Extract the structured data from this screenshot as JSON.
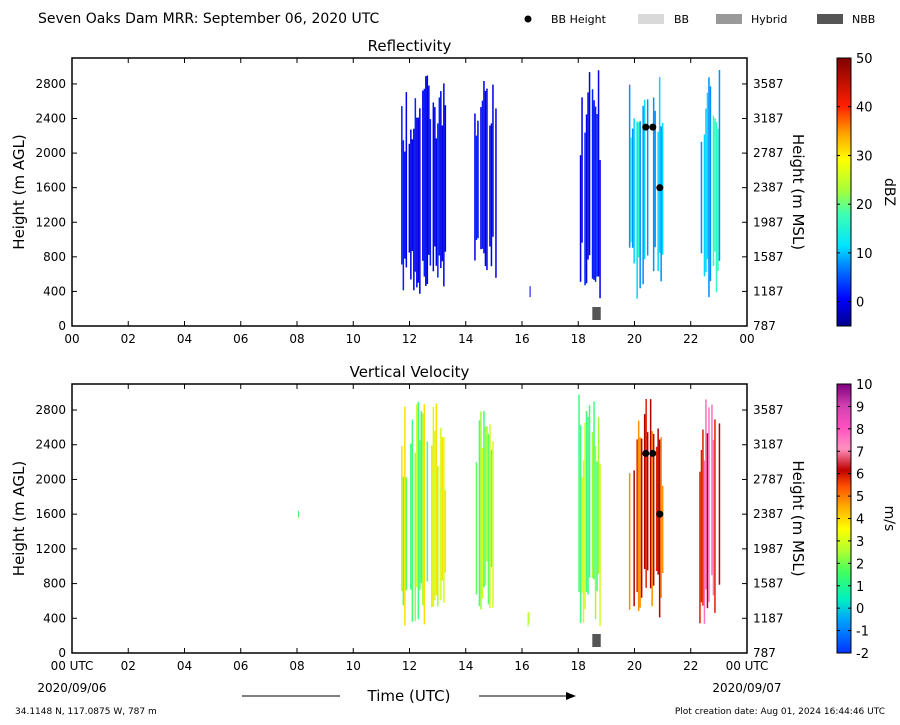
{
  "header": {
    "title": "Seven Oaks Dam MRR:  September 06, 2020 UTC",
    "legend": {
      "bb_height": "BB Height",
      "bb": "BB",
      "hybrid": "Hybrid",
      "nbb": "NBB"
    }
  },
  "footer": {
    "location": "34.1148 N, 117.0875 W, 787 m",
    "creation_date": "Plot creation date: Aug 01, 2024 16:44:46 UTC",
    "xlabel": "Time (UTC)",
    "start_label": "00 UTC",
    "end_label": "00 UTC",
    "start_date": "2020/09/06",
    "end_date": "2020/09/07"
  },
  "colors": {
    "bb": "#d9d9d9",
    "hybrid": "#999999",
    "nbb": "#555555",
    "bb_marker": "#000000"
  },
  "chart_data": [
    {
      "type": "heatmap",
      "title": "Reflectivity",
      "ylabel": "Height (m AGL)",
      "ylabel_right": "Height (m MSL)",
      "colorbar_label": "dBZ",
      "colorbar_ticks": [
        "50",
        "40",
        "30",
        "20",
        "10",
        "0"
      ],
      "colorbar_range": [
        -5,
        50
      ],
      "xlim": [
        0,
        24
      ],
      "x_ticks": [
        "00",
        "02",
        "04",
        "06",
        "08",
        "10",
        "12",
        "14",
        "16",
        "18",
        "20",
        "22",
        "00"
      ],
      "ylim": [
        0,
        3100
      ],
      "y_ticks": [
        "0",
        "400",
        "800",
        "1200",
        "1600",
        "2000",
        "2400",
        "2800"
      ],
      "y_ticks_right": [
        "787",
        "1187",
        "1587",
        "1987",
        "2387",
        "2787",
        "3187",
        "3587"
      ],
      "bb_height_points": [
        {
          "x": 20.4,
          "y": 2300
        },
        {
          "x": 20.65,
          "y": 2300
        },
        {
          "x": 20.9,
          "y": 1600
        }
      ],
      "nbb_segments": [
        {
          "x0": 18.5,
          "x1": 18.8
        }
      ],
      "precip_regions": [
        {
          "x0": 11.7,
          "x1": 13.3,
          "y0": 300,
          "y1": 2900,
          "level": 0
        },
        {
          "x0": 14.3,
          "x1": 15.1,
          "y0": 500,
          "y1": 2900,
          "level": 0
        },
        {
          "x0": 16.2,
          "x1": 16.3,
          "y0": 300,
          "y1": 500,
          "level": 0
        },
        {
          "x0": 18.0,
          "x1": 18.8,
          "y0": 300,
          "y1": 3000,
          "level": 0
        },
        {
          "x0": 19.8,
          "x1": 21.0,
          "y0": 300,
          "y1": 3000,
          "level": 8
        },
        {
          "x0": 22.3,
          "x1": 23.0,
          "y0": 300,
          "y1": 3000,
          "level": 8
        }
      ]
    },
    {
      "type": "heatmap",
      "title": "Vertical Velocity",
      "ylabel": "Height (m AGL)",
      "ylabel_right": "Height (m MSL)",
      "colorbar_label": "m/s",
      "colorbar_ticks": [
        "10",
        "9",
        "8",
        "7",
        "6",
        "5",
        "4",
        "3",
        "2",
        "1",
        "0",
        "-1",
        "-2"
      ],
      "colorbar_range": [
        -2,
        10
      ],
      "xlim": [
        0,
        24
      ],
      "x_ticks": [
        "00 UTC",
        "02",
        "04",
        "06",
        "08",
        "10",
        "12",
        "14",
        "16",
        "18",
        "20",
        "22",
        "00 UTC"
      ],
      "ylim": [
        0,
        3100
      ],
      "y_ticks": [
        "0",
        "400",
        "800",
        "1200",
        "1600",
        "2000",
        "2400",
        "2800"
      ],
      "y_ticks_right": [
        "787",
        "1187",
        "1587",
        "1987",
        "2387",
        "2787",
        "3187",
        "3587"
      ],
      "bb_height_points": [
        {
          "x": 20.4,
          "y": 2300
        },
        {
          "x": 20.65,
          "y": 2300
        },
        {
          "x": 20.9,
          "y": 1600
        }
      ],
      "nbb_segments": [
        {
          "x0": 18.5,
          "x1": 18.8
        }
      ],
      "precip_regions": [
        {
          "x0": 8.0,
          "x1": 8.05,
          "y0": 1550,
          "y1": 1650,
          "level": 0.5
        },
        {
          "x0": 11.7,
          "x1": 13.3,
          "y0": 300,
          "y1": 2900,
          "level": 1.5
        },
        {
          "x0": 14.3,
          "x1": 15.1,
          "y0": 500,
          "y1": 2900,
          "level": 0.8
        },
        {
          "x0": 16.2,
          "x1": 16.3,
          "y0": 300,
          "y1": 500,
          "level": 2
        },
        {
          "x0": 18.0,
          "x1": 18.8,
          "y0": 300,
          "y1": 3000,
          "level": 1.2
        },
        {
          "x0": 19.8,
          "x1": 21.0,
          "y0": 300,
          "y1": 3000,
          "level": 5
        },
        {
          "x0": 22.3,
          "x1": 23.0,
          "y0": 300,
          "y1": 3000,
          "level": 6
        }
      ]
    }
  ]
}
